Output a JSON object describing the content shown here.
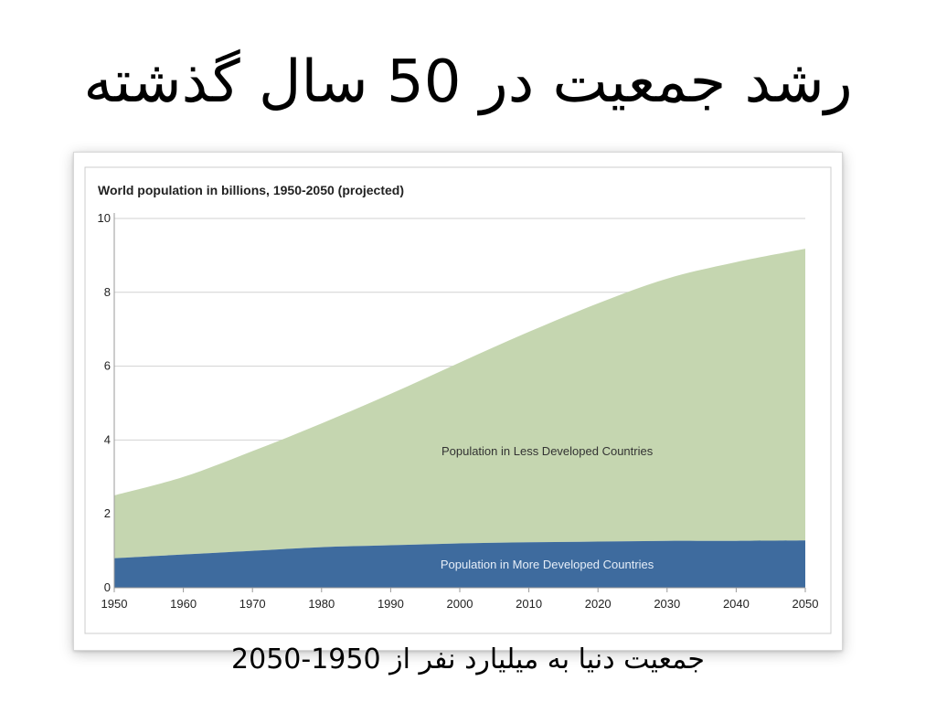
{
  "slide": {
    "title": "رشد جمعیت در 50 سال گذشته",
    "caption": "جمعیت دنیا به میلیارد نفر از 1950-2050"
  },
  "chart_data": {
    "type": "area",
    "stacked": true,
    "title": "World population in billions, 1950-2050 (projected)",
    "xlabel": "",
    "ylabel": "",
    "x": [
      1950,
      1960,
      1970,
      1980,
      1990,
      2000,
      2010,
      2020,
      2030,
      2040,
      2050
    ],
    "xlim": [
      1950,
      2050
    ],
    "ylim": [
      0,
      10
    ],
    "x_ticks": [
      "1950",
      "1960",
      "1970",
      "1980",
      "1990",
      "2000",
      "2010",
      "2020",
      "2030",
      "2040",
      "2050"
    ],
    "y_ticks": [
      "0",
      "2",
      "4",
      "6",
      "8",
      "10"
    ],
    "grid": "horizontal",
    "series": [
      {
        "name": "Population in More Developed Countries",
        "values": [
          0.8,
          0.9,
          1.0,
          1.1,
          1.15,
          1.2,
          1.23,
          1.25,
          1.27,
          1.27,
          1.28
        ],
        "color": "#3e6b9e",
        "label_color": "#e6eef8"
      },
      {
        "name": "Population in Less Developed Countries",
        "values": [
          1.7,
          2.1,
          2.7,
          3.35,
          4.1,
          4.9,
          5.7,
          6.45,
          7.1,
          7.55,
          7.9
        ],
        "color": "#c5d6b0",
        "label_color": "#333333"
      }
    ],
    "colors": {
      "axis": "#9a9a9a",
      "grid": "#d2d2d2",
      "text": "#222222"
    }
  }
}
